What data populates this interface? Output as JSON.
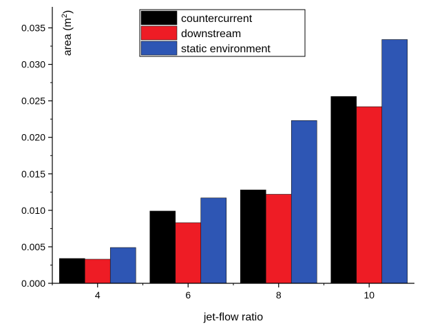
{
  "chart_data": {
    "type": "bar",
    "title": "",
    "xlabel": "jet-flow ratio",
    "ylabel": {
      "main": "area (m",
      "sup": "2",
      "close": ")"
    },
    "categories": [
      "4",
      "6",
      "8",
      "10"
    ],
    "series": [
      {
        "name": "countercurrent",
        "color": "#000000",
        "values": [
          0.0034,
          0.0099,
          0.0128,
          0.0256
        ]
      },
      {
        "name": "downstream",
        "color": "#ee1c25",
        "values": [
          0.0033,
          0.0083,
          0.0122,
          0.0242
        ]
      },
      {
        "name": "static environment",
        "color": "#2e56b4",
        "values": [
          0.0049,
          0.0117,
          0.0223,
          0.0334
        ]
      }
    ],
    "ylim": [
      0,
      0.0375
    ],
    "yticks": [
      "0.000",
      "0.005",
      "0.010",
      "0.015",
      "0.020",
      "0.025",
      "0.030",
      "0.035"
    ],
    "ytick_values": [
      0,
      0.005,
      0.01,
      0.015,
      0.02,
      0.025,
      0.03,
      0.035
    ],
    "grid": false,
    "legend_position": "top-center"
  }
}
